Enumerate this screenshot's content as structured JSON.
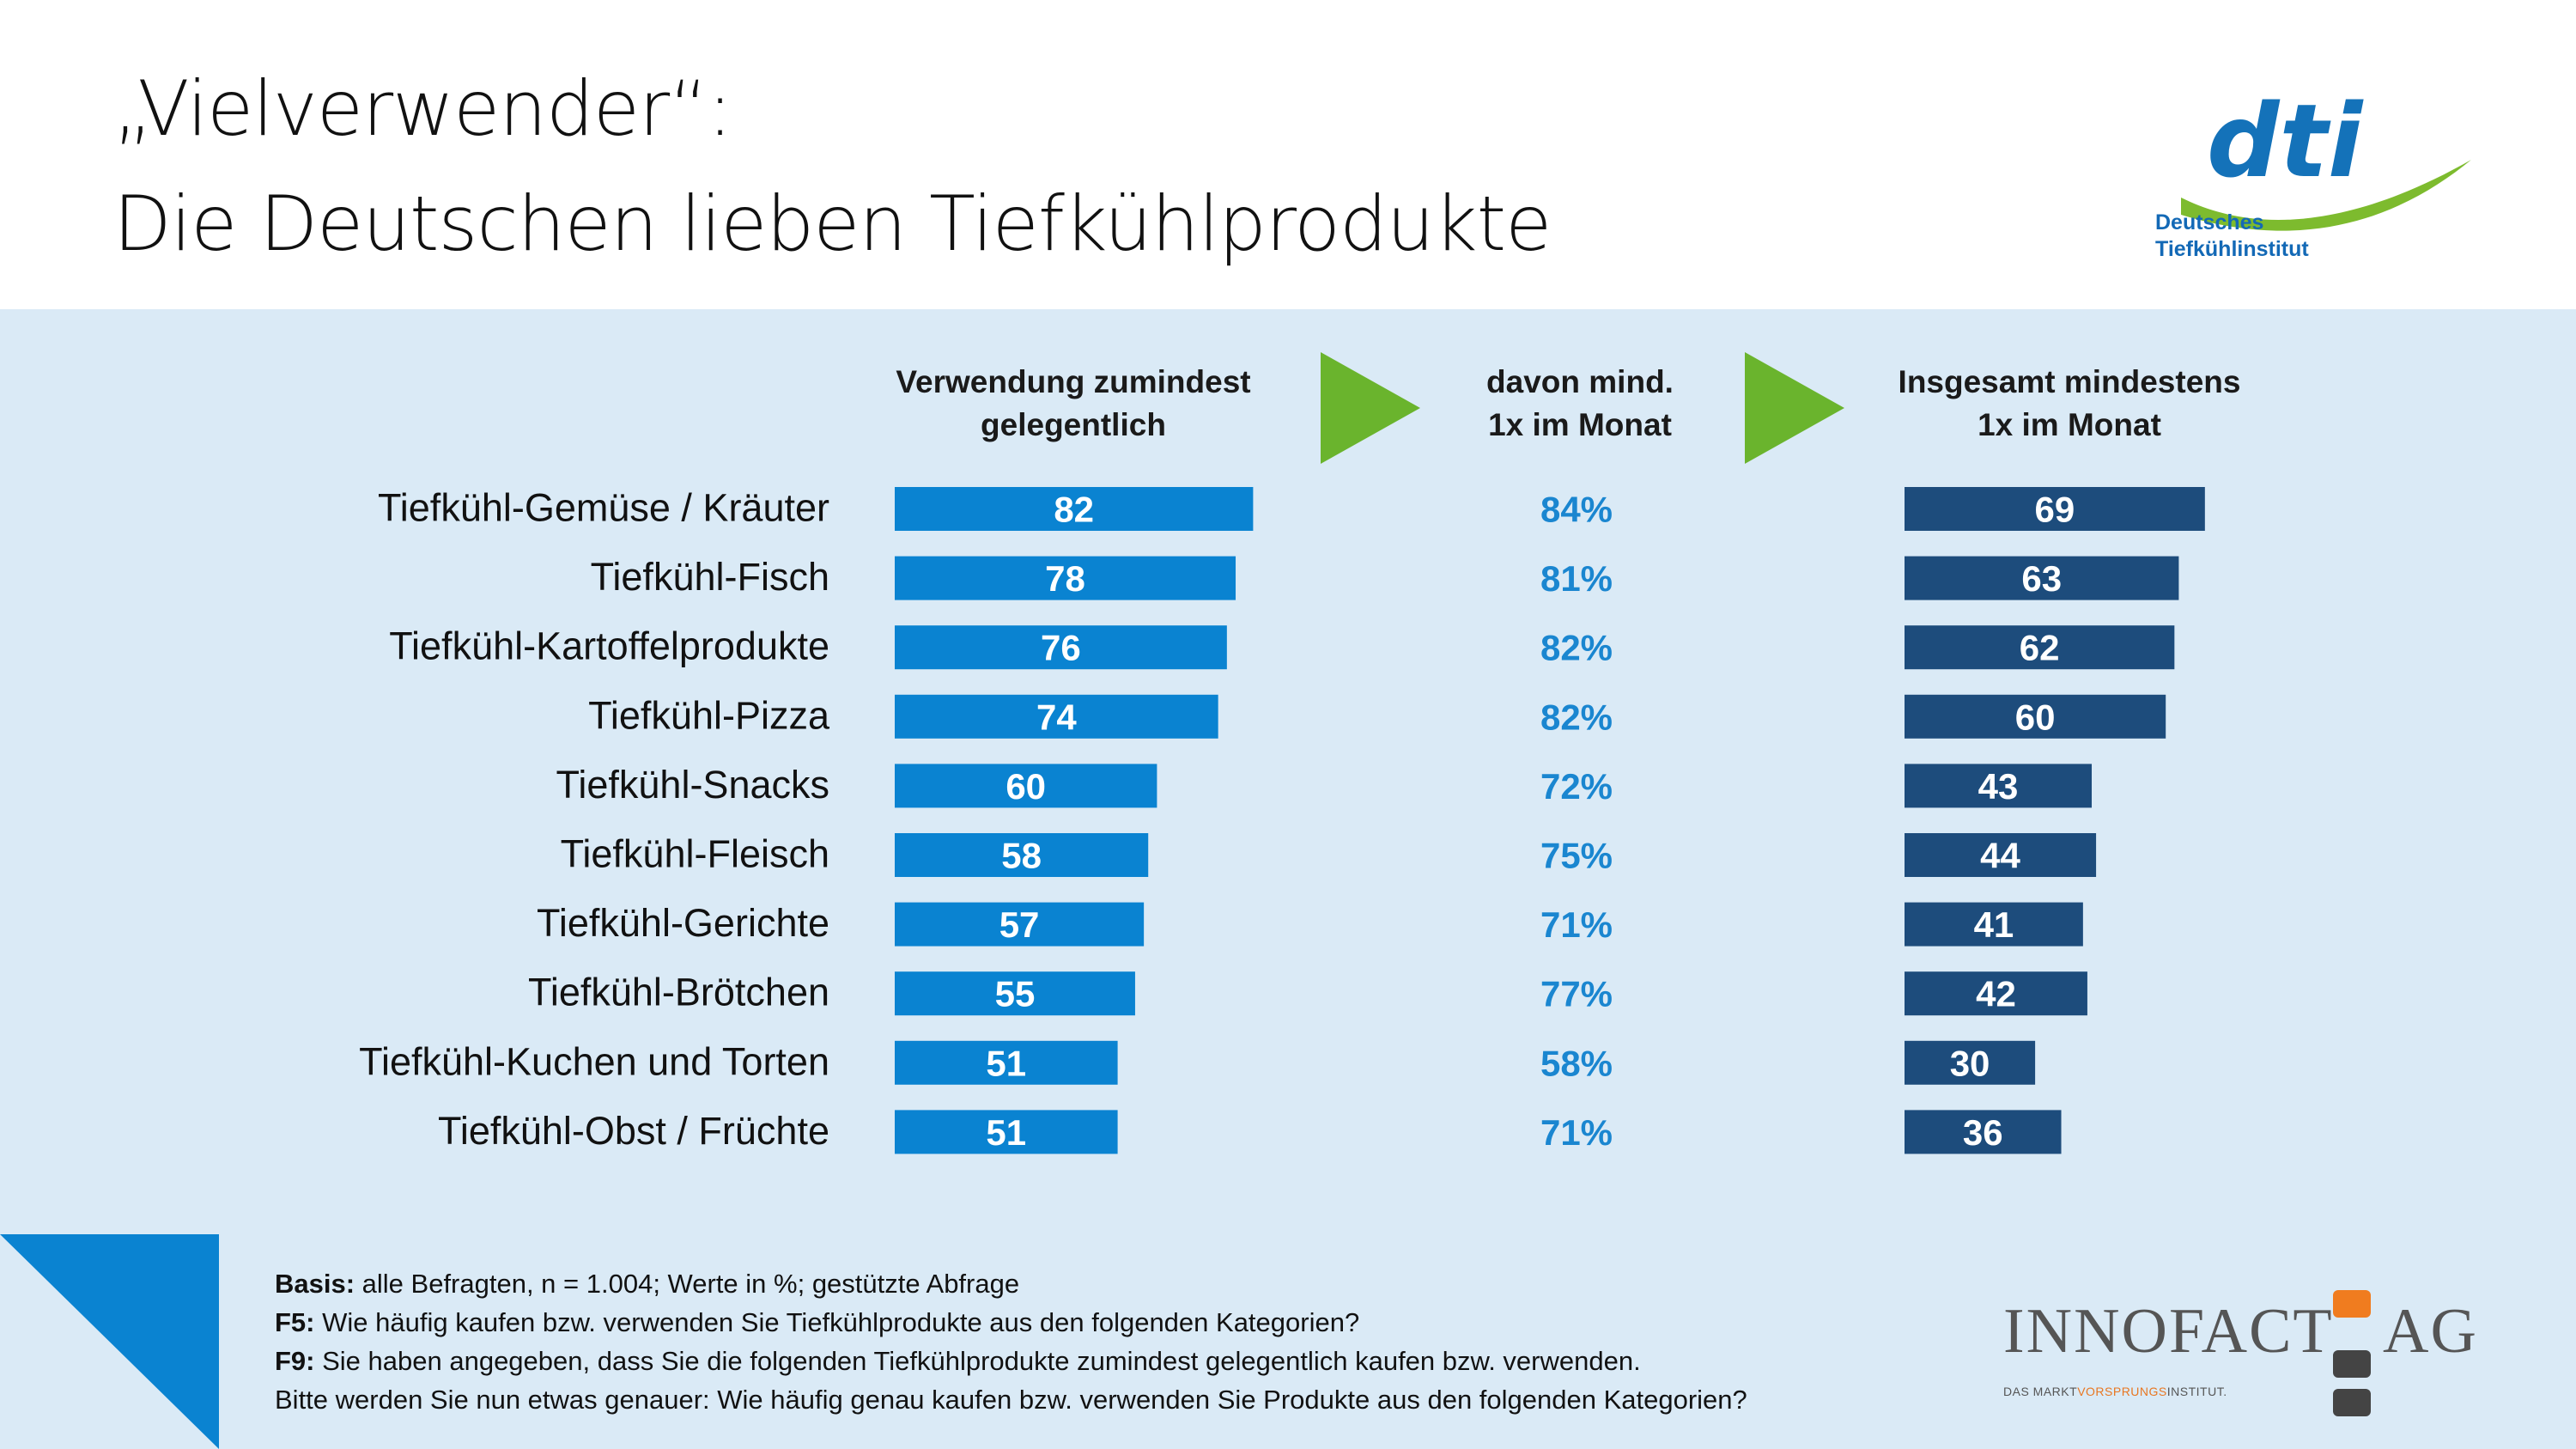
{
  "title": {
    "line1": "„Vielverwender“:",
    "line2": "Die Deutschen lieben Tiefkühlprodukte"
  },
  "logo": {
    "wordmark": "dti",
    "subtitle_line1": "Deutsches",
    "subtitle_line2": "Tiefkühlinstitut"
  },
  "colors": {
    "bar_light": "#0a83d1",
    "bar_dark": "#1d4c7c",
    "pct_text": "#1a86d0",
    "arrow": "#6ab42d",
    "panel_bg": "#daeaf6"
  },
  "chart_data": {
    "type": "bar",
    "orientation": "horizontal",
    "categories": [
      "Tiefkühl-Gemüse / Kräuter",
      "Tiefkühl-Fisch",
      "Tiefkühl-Kartoffelprodukte",
      "Tiefkühl-Pizza",
      "Tiefkühl-Snacks",
      "Tiefkühl-Fleisch",
      "Tiefkühl-Gerichte",
      "Tiefkühl-Brötchen",
      "Tiefkühl-Kuchen und Torten",
      "Tiefkühl-Obst / Früchte"
    ],
    "columns": [
      {
        "header": "Verwendung zumindest\ngelegentlich",
        "kind": "bar",
        "values": [
          82,
          78,
          76,
          74,
          60,
          58,
          57,
          55,
          51,
          51
        ]
      },
      {
        "header": "davon mind.\n1x im Monat",
        "kind": "percent",
        "values": [
          "84%",
          "81%",
          "82%",
          "82%",
          "72%",
          "75%",
          "71%",
          "77%",
          "58%",
          "71%"
        ]
      },
      {
        "header": "Insgesamt mindestens\n1x im Monat",
        "kind": "bar",
        "values": [
          69,
          63,
          62,
          60,
          43,
          44,
          41,
          42,
          30,
          36
        ]
      }
    ]
  },
  "footnote": {
    "basis_label": "Basis:",
    "basis_text": " alle Befragten,  n = 1.004; Werte in %; gestützte Abfrage",
    "f5_label": "F5:",
    "f5_text": " Wie häufig kaufen bzw. verwenden Sie Tiefkühlprodukte aus den folgenden Kategorien?",
    "f9_label": "F9:",
    "f9_text": " Sie haben angegeben, dass Sie die folgenden Tiefkühlprodukte zumindest gelegentlich kaufen bzw. verwenden.",
    "line4": "Bitte werden Sie nun etwas genauer: Wie häufig genau kaufen bzw. verwenden Sie Produkte aus den folgenden Kategorien?"
  },
  "innofact": {
    "name": "INNOFACT",
    "suffix": "AG",
    "tagline_a": "DAS MARKT",
    "tagline_b": "VORSPRUNGS",
    "tagline_c": "INSTITUT."
  }
}
